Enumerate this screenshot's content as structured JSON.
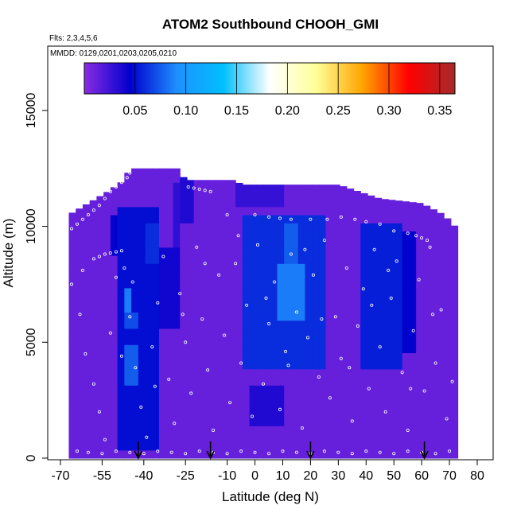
{
  "chart_data": {
    "type": "heatmap",
    "title": "ATOM2 Southbound CHOOH_GMI",
    "annotations": [
      "Flts: 2,3,4,5,6",
      "MMDD: 0129,0201,0203,0205,0210"
    ],
    "xlabel": "Latitude (deg N)",
    "ylabel": "Altitude (m)",
    "xlim": [
      -70,
      80
    ],
    "ylim": [
      0,
      17500
    ],
    "x_ticks": [
      -70,
      -55,
      -40,
      -25,
      -10,
      0,
      10,
      20,
      30,
      40,
      50,
      60,
      70,
      80
    ],
    "x_tick_labels": [
      "-70",
      "-55",
      "-40",
      "-25",
      "-10",
      "0",
      "10",
      "20",
      "30",
      "40",
      "50",
      "60",
      "70",
      "80"
    ],
    "y_ticks": [
      0,
      5000,
      10000,
      15000
    ],
    "y_tick_labels": [
      "0",
      "5000",
      "10000",
      "15000"
    ],
    "colorbar": {
      "range": [
        0.0,
        0.365
      ],
      "ticks": [
        0.05,
        0.1,
        0.15,
        0.2,
        0.25,
        0.3,
        0.35
      ],
      "tick_labels": [
        "0.05",
        "0.10",
        "0.15",
        "0.20",
        "0.25",
        "0.30",
        "0.35"
      ],
      "stops": [
        "#8a2be2",
        "#0000cd",
        "#1e90ff",
        "#00bfff",
        "#ffffff",
        "#ffff99",
        "#ffa500",
        "#ff0000",
        "#a52a2a"
      ]
    },
    "field": {
      "background_value": 0.012,
      "coverage_x": [
        -67,
        72
      ],
      "top_profile": [
        [
          -67,
          10500
        ],
        [
          -60,
          11000
        ],
        [
          -53,
          11500
        ],
        [
          -47,
          12000
        ],
        [
          -45,
          12500
        ],
        [
          -28,
          12500
        ],
        [
          -25,
          12000
        ],
        [
          -10,
          12000
        ],
        [
          -7,
          12000
        ],
        [
          -5,
          11800
        ],
        [
          0,
          11800
        ],
        [
          10,
          11800
        ],
        [
          30,
          11800
        ],
        [
          45,
          11200
        ],
        [
          60,
          11000
        ],
        [
          68,
          10500
        ],
        [
          72,
          10000
        ]
      ],
      "features": [
        {
          "x": [
            -49,
            -34
          ],
          "y": [
            400,
            11000
          ],
          "value": 0.05
        },
        {
          "x": [
            -47,
            -44
          ],
          "y": [
            6300,
            7200
          ],
          "value": 0.085
        },
        {
          "x": [
            -46,
            -43
          ],
          "y": [
            3000,
            4800
          ],
          "value": 0.075
        },
        {
          "x": [
            -46,
            -43
          ],
          "y": [
            5500,
            6200
          ],
          "value": 0.07
        },
        {
          "x": [
            -40,
            -34
          ],
          "y": [
            8500,
            10000
          ],
          "value": 0.06
        },
        {
          "x": [
            -38,
            -28
          ],
          "y": [
            5500,
            9000
          ],
          "value": 0.04
        },
        {
          "x": [
            -52,
            -40
          ],
          "y": [
            8800,
            10500
          ],
          "value": 0.045
        },
        {
          "x": [
            -30,
            -27
          ],
          "y": [
            9000,
            12000
          ],
          "value": 0.03
        },
        {
          "x": [
            -28,
            -22
          ],
          "y": [
            10000,
            12300
          ],
          "value": 0.035
        },
        {
          "x": [
            -5,
            25
          ],
          "y": [
            3800,
            10500
          ],
          "value": 0.06
        },
        {
          "x": [
            8,
            18
          ],
          "y": [
            6000,
            8500
          ],
          "value": 0.085
        },
        {
          "x": [
            10,
            16
          ],
          "y": [
            8500,
            10000
          ],
          "value": 0.075
        },
        {
          "x": [
            0,
            10
          ],
          "y": [
            9500,
            10500
          ],
          "value": 0.05
        },
        {
          "x": [
            -2,
            10
          ],
          "y": [
            1500,
            3200
          ],
          "value": 0.035
        },
        {
          "x": [
            38,
            52
          ],
          "y": [
            4000,
            10000
          ],
          "value": 0.055
        },
        {
          "x": [
            52,
            58
          ],
          "y": [
            4500,
            9800
          ],
          "value": 0.045
        },
        {
          "x": [
            -8,
            10
          ],
          "y": [
            11000,
            11800
          ],
          "value": 0.028
        }
      ]
    },
    "arrows_lat": [
      -42,
      -16,
      20,
      61
    ],
    "points": [
      [
        -68,
        9700
      ],
      [
        -66,
        9900
      ],
      [
        -64,
        10100
      ],
      [
        -62,
        10300
      ],
      [
        -60,
        10500
      ],
      [
        -58,
        10700
      ],
      [
        -56,
        10900
      ],
      [
        -54,
        11200
      ],
      [
        -52,
        11500
      ],
      [
        -50,
        11700
      ],
      [
        -48,
        11900
      ],
      [
        -46,
        12100
      ],
      [
        -45,
        12300
      ],
      [
        -58,
        8600
      ],
      [
        -56,
        8700
      ],
      [
        -54,
        8800
      ],
      [
        -52,
        8850
      ],
      [
        -50,
        8900
      ],
      [
        -48,
        8950
      ],
      [
        -24,
        11700
      ],
      [
        -22,
        11650
      ],
      [
        -20,
        11600
      ],
      [
        -18,
        11550
      ],
      [
        -16,
        11500
      ],
      [
        -10,
        10500
      ],
      [
        0,
        10500
      ],
      [
        5,
        10400
      ],
      [
        9,
        10350
      ],
      [
        13,
        10300
      ],
      [
        20,
        10300
      ],
      [
        26,
        10300
      ],
      [
        31,
        10400
      ],
      [
        36,
        10300
      ],
      [
        40,
        10200
      ],
      [
        45,
        10100
      ],
      [
        50,
        9800
      ],
      [
        55,
        9700
      ],
      [
        58,
        9600
      ],
      [
        60,
        9500
      ],
      [
        62,
        9400
      ],
      [
        -66,
        7500
      ],
      [
        -63,
        6200
      ],
      [
        -61,
        4500
      ],
      [
        -58,
        3200
      ],
      [
        -56,
        2000
      ],
      [
        -54,
        800
      ],
      [
        -52,
        5400
      ],
      [
        -50,
        7800
      ],
      [
        -47,
        8200
      ],
      [
        -45,
        6100
      ],
      [
        -43,
        3900
      ],
      [
        -41,
        2200
      ],
      [
        -39,
        900
      ],
      [
        -37,
        4800
      ],
      [
        -35,
        6700
      ],
      [
        -33,
        8700
      ],
      [
        -31,
        3400
      ],
      [
        -29,
        1500
      ],
      [
        -27,
        7100
      ],
      [
        -25,
        5000
      ],
      [
        -23,
        2800
      ],
      [
        -21,
        9100
      ],
      [
        -19,
        6000
      ],
      [
        -17,
        3800
      ],
      [
        -15,
        1200
      ],
      [
        -13,
        7900
      ],
      [
        -11,
        5300
      ],
      [
        -9,
        2400
      ],
      [
        -7,
        8400
      ],
      [
        -5,
        4100
      ],
      [
        -3,
        6600
      ],
      [
        -1,
        1800
      ],
      [
        1,
        9200
      ],
      [
        3,
        3200
      ],
      [
        5,
        5800
      ],
      [
        7,
        7600
      ],
      [
        9,
        2100
      ],
      [
        11,
        4600
      ],
      [
        13,
        8800
      ],
      [
        15,
        6300
      ],
      [
        17,
        1300
      ],
      [
        19,
        5200
      ],
      [
        21,
        7900
      ],
      [
        23,
        3500
      ],
      [
        25,
        9400
      ],
      [
        27,
        2600
      ],
      [
        29,
        6100
      ],
      [
        31,
        4300
      ],
      [
        33,
        8200
      ],
      [
        35,
        1600
      ],
      [
        37,
        5700
      ],
      [
        39,
        7300
      ],
      [
        41,
        3000
      ],
      [
        43,
        9000
      ],
      [
        45,
        4800
      ],
      [
        47,
        2000
      ],
      [
        49,
        6900
      ],
      [
        51,
        8500
      ],
      [
        53,
        3700
      ],
      [
        55,
        1200
      ],
      [
        57,
        5500
      ],
      [
        59,
        7700
      ],
      [
        61,
        2900
      ],
      [
        63,
        9100
      ],
      [
        65,
        4100
      ],
      [
        67,
        6400
      ],
      [
        69,
        1700
      ],
      [
        71,
        3300
      ],
      [
        -64,
        300
      ],
      [
        -60,
        250
      ],
      [
        -55,
        200
      ],
      [
        -50,
        300
      ],
      [
        -45,
        250
      ],
      [
        -40,
        200
      ],
      [
        -35,
        300
      ],
      [
        -30,
        250
      ],
      [
        -25,
        200
      ],
      [
        -20,
        300
      ],
      [
        -15,
        250
      ],
      [
        -10,
        200
      ],
      [
        -5,
        300
      ],
      [
        0,
        250
      ],
      [
        5,
        200
      ],
      [
        10,
        300
      ],
      [
        15,
        250
      ],
      [
        20,
        200
      ],
      [
        25,
        300
      ],
      [
        30,
        250
      ],
      [
        35,
        200
      ],
      [
        40,
        300
      ],
      [
        45,
        250
      ],
      [
        50,
        200
      ],
      [
        55,
        300
      ],
      [
        60,
        250
      ],
      [
        65,
        200
      ],
      [
        70,
        300
      ],
      [
        -62,
        8100
      ],
      [
        -48,
        4400
      ],
      [
        -44,
        7600
      ],
      [
        -36,
        3100
      ],
      [
        -26,
        6200
      ],
      [
        -18,
        8400
      ],
      [
        -6,
        9600
      ],
      [
        4,
        6900
      ],
      [
        12,
        4000
      ],
      [
        18,
        9000
      ],
      [
        24,
        6000
      ],
      [
        34,
        3900
      ],
      [
        42,
        6600
      ],
      [
        48,
        8100
      ],
      [
        56,
        3000
      ],
      [
        64,
        6200
      ]
    ]
  }
}
